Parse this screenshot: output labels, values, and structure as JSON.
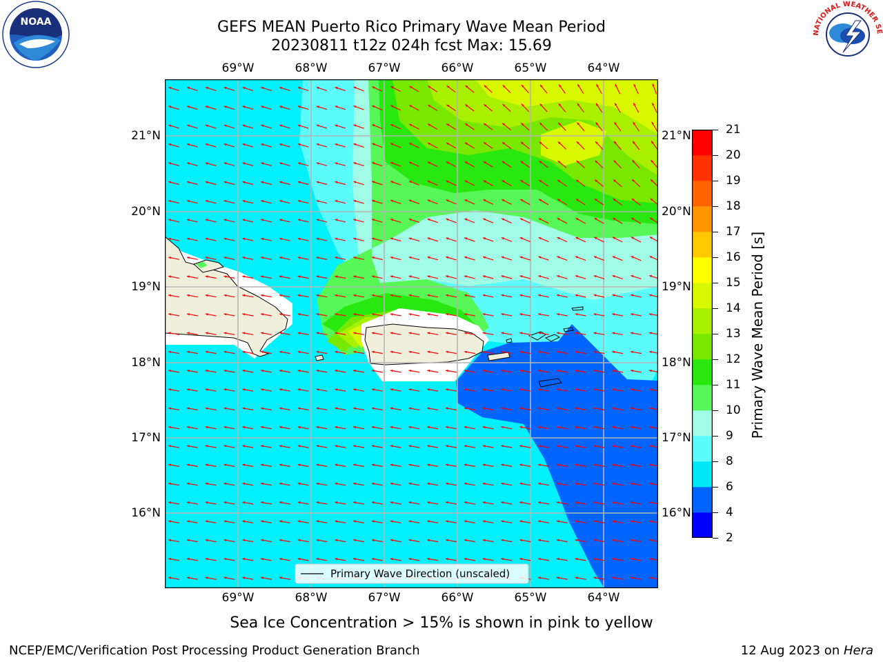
{
  "title_line1": "GEFS MEAN Puerto Rico Primary Wave Mean Period",
  "title_line2": "20230811 t12z 024h fcst   Max: 15.69",
  "lon_labels": [
    "69°W",
    "68°W",
    "67°W",
    "66°W",
    "65°W",
    "64°W"
  ],
  "lat_labels": [
    "21°N",
    "20°N",
    "19°N",
    "18°N",
    "17°N",
    "16°N"
  ],
  "legend_text": "Primary Wave Direction (unscaled)",
  "colorbar": {
    "label": "Primary Wave Mean Period [s]",
    "ticks": [
      "21",
      "20",
      "19",
      "18",
      "17",
      "16",
      "15",
      "14",
      "13",
      "12",
      "11",
      "10",
      "9",
      "8",
      "6",
      "4",
      "2"
    ],
    "levels": [
      2,
      4,
      6,
      8,
      9,
      10,
      11,
      12,
      13,
      14,
      15,
      16,
      17,
      18,
      19,
      20,
      21
    ],
    "colors": [
      "#0000ff",
      "#0064ff",
      "#00e8f8",
      "#5cfcfc",
      "#a0fce4",
      "#56f756",
      "#28e810",
      "#78e800",
      "#a8f000",
      "#d8f800",
      "#ffff00",
      "#ffc800",
      "#ff9600",
      "#ff6400",
      "#ff3200",
      "#ff0000"
    ]
  },
  "map_colors": {
    "ocean_base": "#00f0fc",
    "land": "#f0efdc",
    "arrow": "#ff0000",
    "grid": "#b4b4b4"
  },
  "footnote": "Sea Ice Concentration > 15% is shown in pink to yellow",
  "credit": "NCEP/EMC/Verification Post Processing Product Generation Branch",
  "date_prefix": "12 Aug 2023 on ",
  "date_host": "Hera",
  "logos": {
    "noaa_text": "NOAA",
    "nws_text": "NATIONAL WEATHER SERVICE"
  }
}
